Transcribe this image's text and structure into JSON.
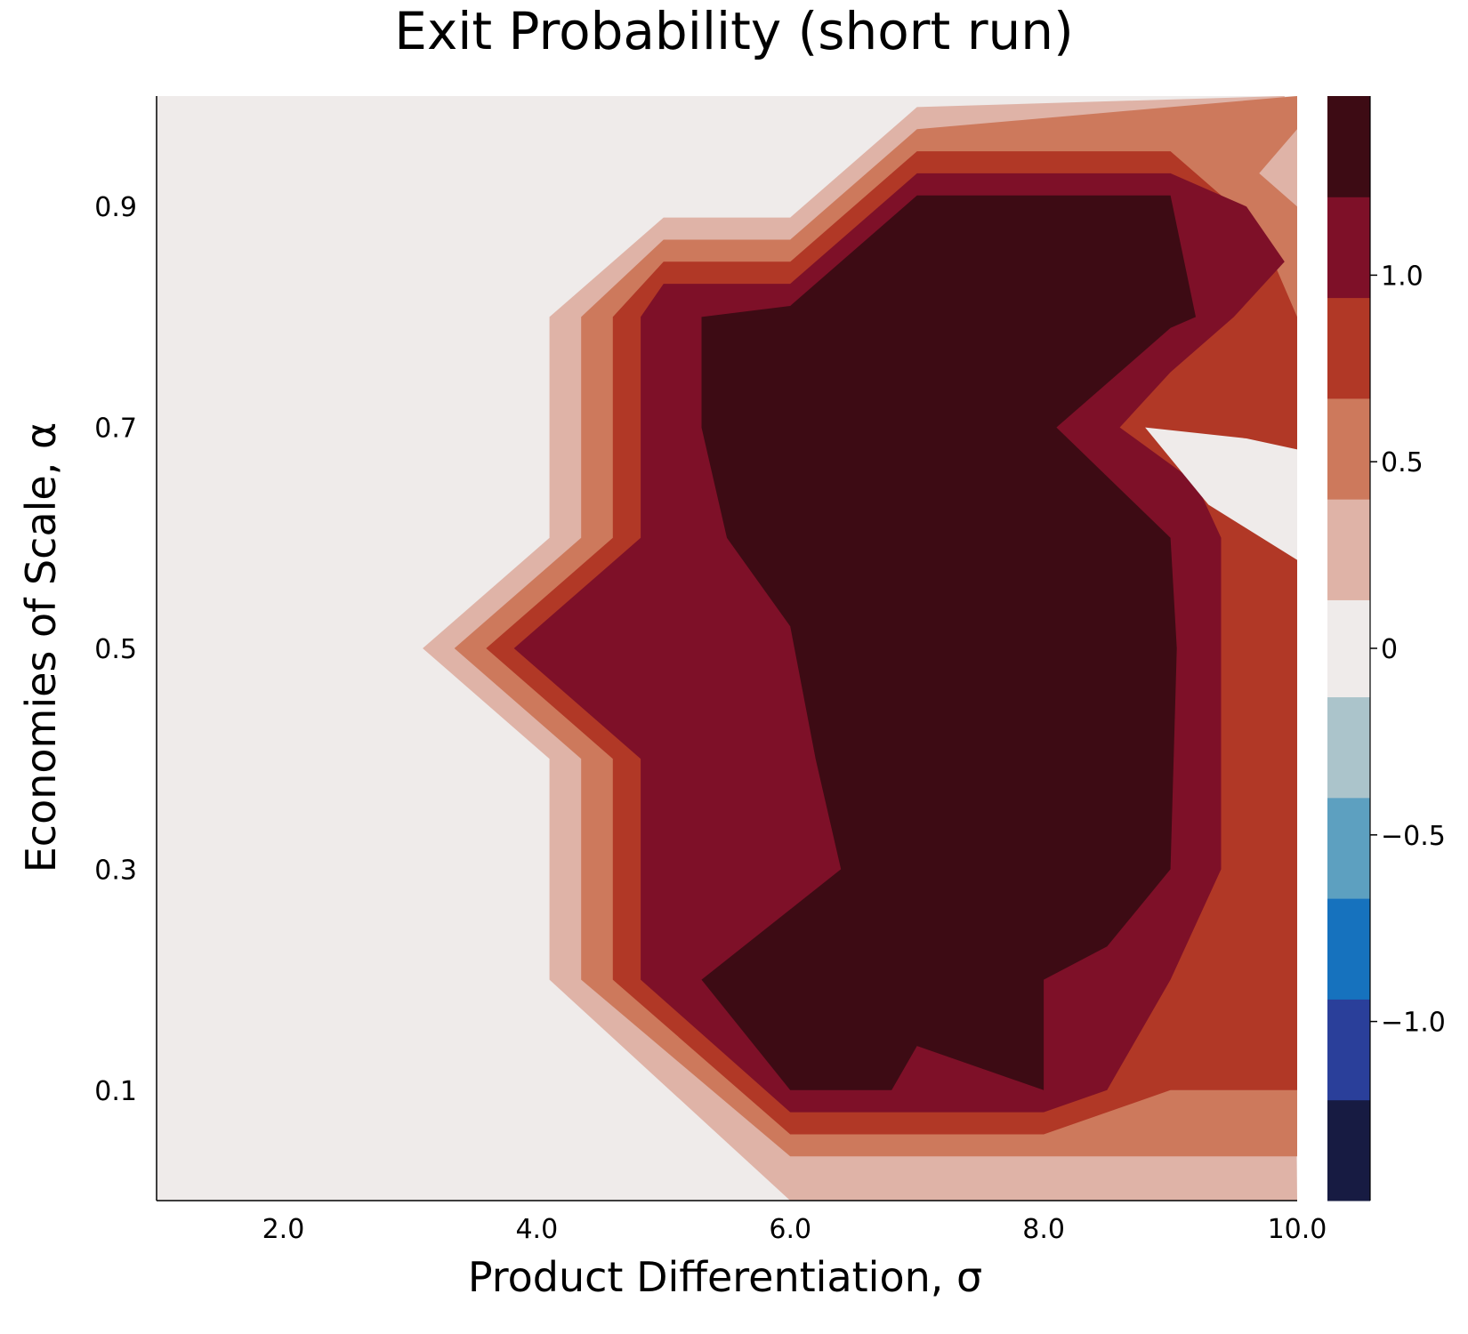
{
  "chart_data": {
    "type": "contour",
    "title": "Exit Probability (short run)",
    "xlabel": "Product Differentiation, σ",
    "ylabel": "Economies of Scale, α",
    "xlim": [
      1.0,
      10.0
    ],
    "ylim": [
      0.0,
      1.0
    ],
    "xticks": [
      {
        "value": 2,
        "label": "2.0"
      },
      {
        "value": 4,
        "label": "4.0"
      },
      {
        "value": 6,
        "label": "6.0"
      },
      {
        "value": 8,
        "label": "8.0"
      },
      {
        "value": 10,
        "label": "10.0"
      }
    ],
    "yticks": [
      {
        "value": 0.1,
        "label": "0.1"
      },
      {
        "value": 0.3,
        "label": "0.3"
      },
      {
        "value": 0.5,
        "label": "0.5"
      },
      {
        "value": 0.7,
        "label": "0.7"
      },
      {
        "value": 0.9,
        "label": "0.9"
      }
    ],
    "grid": false,
    "colorbar": {
      "range": [
        -1.48,
        1.48
      ],
      "ticks": [
        {
          "value": 1.0,
          "label": "1.0"
        },
        {
          "value": 0.5,
          "label": "0.5"
        },
        {
          "value": 0,
          "label": "0"
        },
        {
          "value": -0.5,
          "label": "−0.5"
        },
        {
          "value": -1.0,
          "label": "−1.0"
        }
      ],
      "levels": [
        {
          "from": -1.48,
          "to": -1.21,
          "color": "#171b42"
        },
        {
          "from": -1.21,
          "to": -0.94,
          "color": "#2a3f9a"
        },
        {
          "from": -0.94,
          "to": -0.67,
          "color": "#1672be"
        },
        {
          "from": -0.67,
          "to": -0.4,
          "color": "#5da0c0"
        },
        {
          "from": -0.4,
          "to": -0.13,
          "color": "#abc4cb"
        },
        {
          "from": -0.13,
          "to": 0.13,
          "color": "#efebea"
        },
        {
          "from": 0.13,
          "to": 0.4,
          "color": "#dfb3a7"
        },
        {
          "from": 0.4,
          "to": 0.67,
          "color": "#cd795c"
        },
        {
          "from": 0.67,
          "to": 0.94,
          "color": "#b13826"
        },
        {
          "from": 0.94,
          "to": 1.21,
          "color": "#7e1028"
        },
        {
          "from": 1.21,
          "to": 1.48,
          "color": "#3d0b14"
        }
      ]
    },
    "background_color": "#efebea",
    "regions": [
      {
        "level": 0.27,
        "color": "#dfb3a7",
        "points": [
          [
            9.9,
            1.0
          ],
          [
            7.0,
            0.99
          ],
          [
            6.0,
            0.89
          ],
          [
            5.0,
            0.89
          ],
          [
            4.1,
            0.8
          ],
          [
            4.1,
            0.6
          ],
          [
            3.1,
            0.5
          ],
          [
            4.1,
            0.4
          ],
          [
            4.1,
            0.2
          ],
          [
            6.0,
            0.0
          ],
          [
            10.0,
            0.0
          ]
        ]
      },
      {
        "level": 0.53,
        "color": "#cd795c",
        "points": [
          [
            10.0,
            1.0
          ],
          [
            9.0,
            0.99
          ],
          [
            7.0,
            0.97
          ],
          [
            6.0,
            0.87
          ],
          [
            5.0,
            0.87
          ],
          [
            4.35,
            0.8
          ],
          [
            4.35,
            0.6
          ],
          [
            3.35,
            0.5
          ],
          [
            4.35,
            0.4
          ],
          [
            4.35,
            0.2
          ],
          [
            6.0,
            0.04
          ],
          [
            10.0,
            0.04
          ]
        ]
      },
      {
        "level": 0.8,
        "color": "#b13826",
        "points": [
          [
            9.0,
            0.95
          ],
          [
            7.0,
            0.95
          ],
          [
            6.0,
            0.85
          ],
          [
            5.0,
            0.85
          ],
          [
            4.6,
            0.8
          ],
          [
            4.6,
            0.6
          ],
          [
            3.6,
            0.5
          ],
          [
            4.6,
            0.4
          ],
          [
            4.6,
            0.2
          ],
          [
            6.0,
            0.06
          ],
          [
            8.0,
            0.06
          ],
          [
            9.0,
            0.1
          ],
          [
            10.0,
            0.1
          ],
          [
            10.0,
            0.8
          ],
          [
            9.7,
            0.88
          ]
        ]
      },
      {
        "level": 1.07,
        "color": "#7e1028",
        "points": [
          [
            9.0,
            0.93
          ],
          [
            7.0,
            0.93
          ],
          [
            6.0,
            0.83
          ],
          [
            5.0,
            0.83
          ],
          [
            4.82,
            0.8
          ],
          [
            4.82,
            0.6
          ],
          [
            3.82,
            0.5
          ],
          [
            4.82,
            0.4
          ],
          [
            4.82,
            0.2
          ],
          [
            6.0,
            0.08
          ],
          [
            8.0,
            0.08
          ],
          [
            8.5,
            0.1
          ],
          [
            9.0,
            0.2
          ],
          [
            9.4,
            0.3
          ],
          [
            9.4,
            0.6
          ],
          [
            9.2,
            0.65
          ],
          [
            8.6,
            0.7
          ],
          [
            9.0,
            0.75
          ],
          [
            9.5,
            0.8
          ],
          [
            9.9,
            0.85
          ],
          [
            9.6,
            0.9
          ]
        ]
      },
      {
        "level": 1.35,
        "color": "#3d0b14",
        "points": [
          [
            7.0,
            0.91
          ],
          [
            8.0,
            0.91
          ],
          [
            9.0,
            0.91
          ],
          [
            9.2,
            0.8
          ],
          [
            9.0,
            0.79
          ],
          [
            8.1,
            0.7
          ],
          [
            9.0,
            0.6
          ],
          [
            9.05,
            0.5
          ],
          [
            9.0,
            0.3
          ],
          [
            8.5,
            0.23
          ],
          [
            8.0,
            0.2
          ],
          [
            8.0,
            0.1
          ],
          [
            7.0,
            0.14
          ],
          [
            6.8,
            0.1
          ],
          [
            6.0,
            0.1
          ],
          [
            5.3,
            0.2
          ],
          [
            6.4,
            0.3
          ],
          [
            6.2,
            0.4
          ],
          [
            6.0,
            0.52
          ],
          [
            5.5,
            0.6
          ],
          [
            5.3,
            0.7
          ],
          [
            5.3,
            0.8
          ],
          [
            6.0,
            0.81
          ]
        ]
      },
      {
        "level": 0.0,
        "color": "#efebea",
        "points": [
          [
            10.0,
            0.68
          ],
          [
            9.6,
            0.69
          ],
          [
            8.8,
            0.7
          ],
          [
            9.3,
            0.63
          ],
          [
            10.0,
            0.58
          ]
        ]
      },
      {
        "level": 0.27,
        "color": "#dfb3a7",
        "points": [
          [
            10.0,
            0.9
          ],
          [
            9.7,
            0.93
          ],
          [
            10.0,
            0.97
          ]
        ]
      }
    ]
  }
}
